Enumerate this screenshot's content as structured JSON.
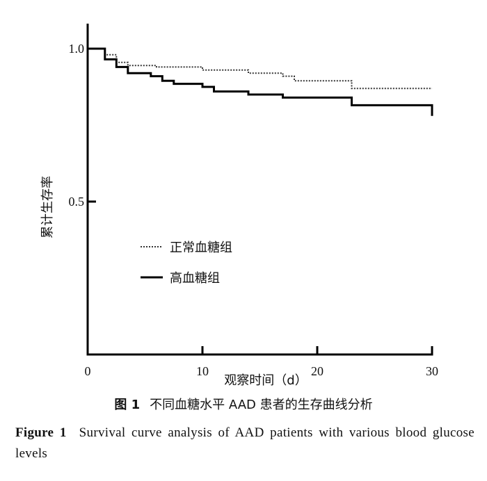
{
  "chart_data": {
    "type": "line",
    "title": "",
    "xlabel": "观察时间（d）",
    "ylabel": "累计生存率",
    "xlim": [
      0,
      30
    ],
    "ylim": [
      0,
      1.05
    ],
    "x_ticks": [
      0,
      10,
      20,
      30
    ],
    "y_ticks": [
      0.5,
      1.0
    ],
    "x_tick_labels": [
      "0",
      "10",
      "20",
      "30"
    ],
    "y_tick_labels": [
      "0.5",
      "1.0"
    ],
    "legend_position": "center-left",
    "series": [
      {
        "name": "正常血糖组",
        "style": "dotted",
        "color": "#333333",
        "points": [
          [
            0,
            1.0
          ],
          [
            1.5,
            1.0
          ],
          [
            1.5,
            0.98
          ],
          [
            2.5,
            0.98
          ],
          [
            2.5,
            0.955
          ],
          [
            3.5,
            0.955
          ],
          [
            3.5,
            0.945
          ],
          [
            6,
            0.945
          ],
          [
            6,
            0.94
          ],
          [
            10,
            0.94
          ],
          [
            10,
            0.93
          ],
          [
            14,
            0.93
          ],
          [
            14,
            0.92
          ],
          [
            17,
            0.92
          ],
          [
            17,
            0.91
          ],
          [
            18,
            0.91
          ],
          [
            18,
            0.895
          ],
          [
            23,
            0.895
          ],
          [
            23,
            0.87
          ],
          [
            30,
            0.87
          ]
        ]
      },
      {
        "name": "高血糖组",
        "style": "solid",
        "color": "#000000",
        "points": [
          [
            0,
            1.0
          ],
          [
            1.5,
            1.0
          ],
          [
            1.5,
            0.965
          ],
          [
            2.5,
            0.965
          ],
          [
            2.5,
            0.94
          ],
          [
            3.5,
            0.94
          ],
          [
            3.5,
            0.92
          ],
          [
            5.5,
            0.92
          ],
          [
            5.5,
            0.91
          ],
          [
            6.5,
            0.91
          ],
          [
            6.5,
            0.895
          ],
          [
            7.5,
            0.895
          ],
          [
            7.5,
            0.885
          ],
          [
            10,
            0.885
          ],
          [
            10,
            0.875
          ],
          [
            11,
            0.875
          ],
          [
            11,
            0.86
          ],
          [
            14,
            0.86
          ],
          [
            14,
            0.85
          ],
          [
            17,
            0.85
          ],
          [
            17,
            0.84
          ],
          [
            23,
            0.84
          ],
          [
            23,
            0.815
          ],
          [
            30,
            0.815
          ],
          [
            30,
            0.78
          ]
        ]
      }
    ]
  },
  "caption_cn": {
    "label": "图 1",
    "text": "不同血糖水平 AAD 患者的生存曲线分析"
  },
  "caption_en": {
    "label": "Figure 1",
    "text": "Survival curve analysis of AAD patients with various blood glucose levels"
  }
}
